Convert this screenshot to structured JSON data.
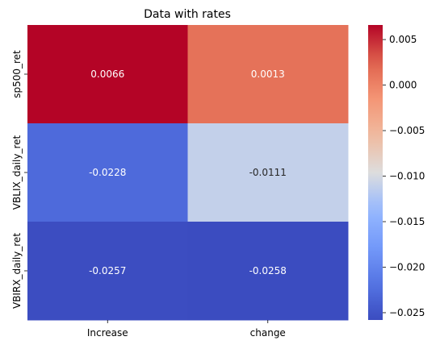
{
  "chart_data": {
    "type": "heatmap",
    "title": "Data with rates",
    "x_categories": [
      "Increase",
      "change"
    ],
    "y_categories": [
      "sp500_ret",
      "VBLIX_daily_ret",
      "VBIRX_daily_ret"
    ],
    "values": [
      [
        0.0066,
        0.0013
      ],
      [
        -0.0228,
        -0.0111
      ],
      [
        -0.0257,
        -0.0258
      ]
    ],
    "cell_labels": [
      [
        "0.0066",
        "0.0013"
      ],
      [
        "-0.0228",
        "-0.0111"
      ],
      [
        "-0.0257",
        "-0.0258"
      ]
    ],
    "colormap": "coolwarm",
    "colorbar": {
      "vmin": -0.0258,
      "vmax": 0.0066,
      "ticks": [
        0.005,
        0.0,
        -0.005,
        -0.01,
        -0.015,
        -0.02,
        -0.025
      ],
      "tick_labels": [
        "0.005",
        "0.000",
        "−0.005",
        "−0.010",
        "−0.015",
        "−0.020",
        "−0.025"
      ]
    },
    "grid": false
  }
}
